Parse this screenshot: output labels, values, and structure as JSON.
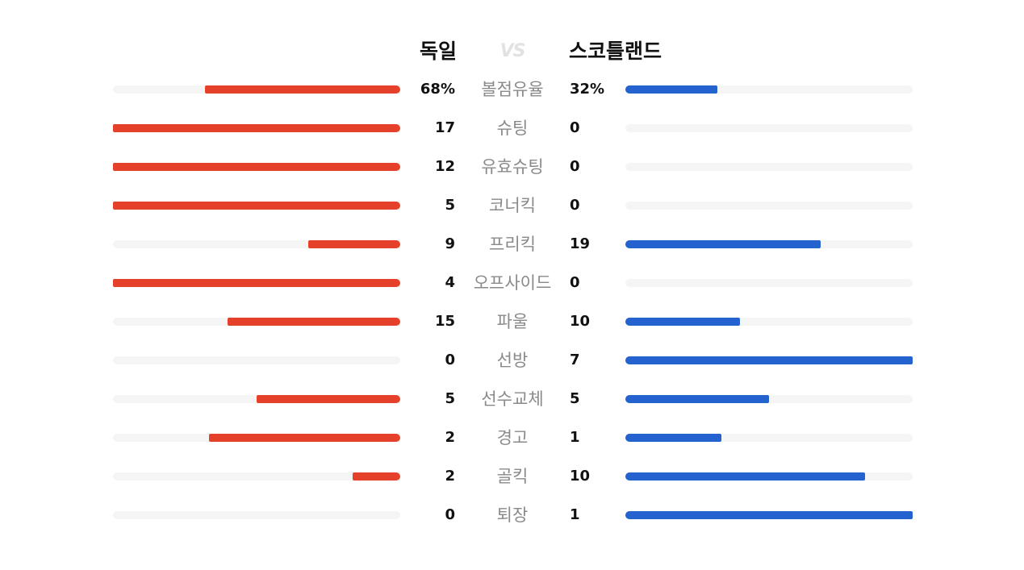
{
  "header": {
    "home_team": "독일",
    "vs_label": "VS",
    "away_team": "스코틀랜드"
  },
  "colors": {
    "home": "#e5412a",
    "away": "#2462d0",
    "track": "#f5f5f5",
    "label": "#8a8a8a"
  },
  "chart_data": {
    "type": "bar",
    "orientation": "horizontal-diverging",
    "categories": [
      "볼점유율",
      "슈팅",
      "유효슈팅",
      "코너킥",
      "프리킥",
      "오프사이드",
      "파울",
      "선방",
      "선수교체",
      "경고",
      "골킥",
      "퇴장"
    ],
    "series": [
      {
        "name": "독일",
        "values": [
          68,
          17,
          12,
          5,
          9,
          4,
          15,
          0,
          5,
          2,
          2,
          0
        ],
        "labels": [
          "68%",
          "17",
          "12",
          "5",
          "9",
          "4",
          "15",
          "0",
          "5",
          "2",
          "2",
          "0"
        ]
      },
      {
        "name": "스코틀랜드",
        "values": [
          32,
          0,
          0,
          0,
          19,
          0,
          10,
          7,
          5,
          1,
          10,
          1
        ],
        "labels": [
          "32%",
          "0",
          "0",
          "0",
          "19",
          "0",
          "10",
          "7",
          "5",
          "1",
          "10",
          "1"
        ]
      }
    ]
  }
}
